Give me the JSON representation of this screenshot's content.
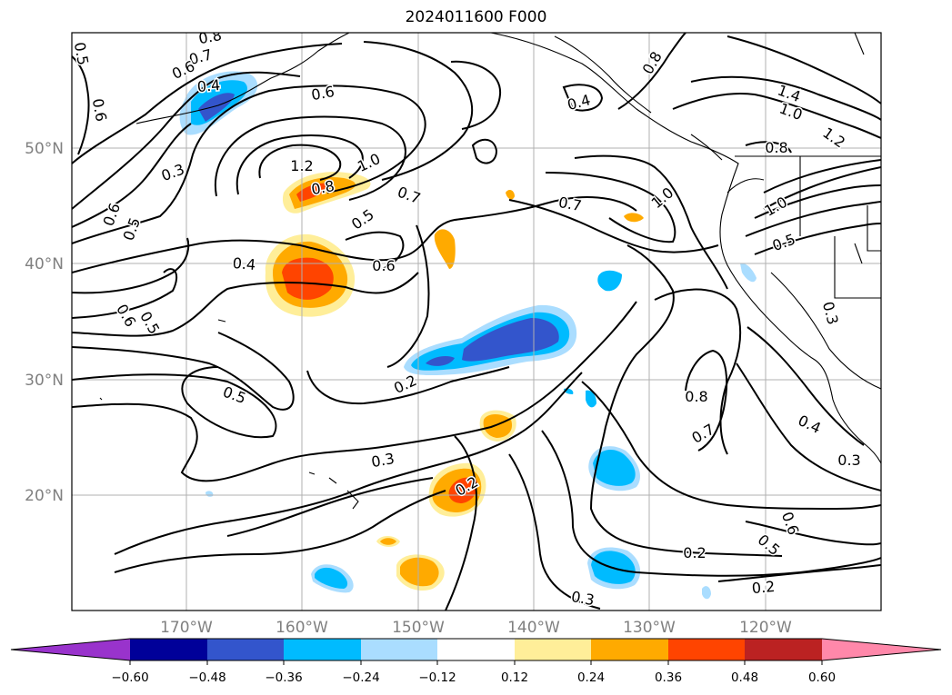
{
  "map": {
    "title": "2024011600 F000",
    "lat_labels": [
      "50°N",
      "40°N",
      "30°N",
      "20°N"
    ],
    "lon_labels": [
      "170°W",
      "160°W",
      "150°W",
      "140°W",
      "130°W",
      "120°W"
    ],
    "contour_labels": [
      {
        "text": "0.8"
      },
      {
        "text": "0.7"
      },
      {
        "text": "0.6"
      },
      {
        "text": "0.4"
      },
      {
        "text": "0.5"
      },
      {
        "text": "0.6"
      },
      {
        "text": "0.3"
      },
      {
        "text": "0.6"
      },
      {
        "text": "0.5"
      },
      {
        "text": "1.2"
      },
      {
        "text": "1.0"
      },
      {
        "text": "0.8"
      },
      {
        "text": "0.7"
      },
      {
        "text": "0.5"
      },
      {
        "text": "0.4"
      },
      {
        "text": "0.6"
      },
      {
        "text": "0.6"
      },
      {
        "text": "0.5"
      },
      {
        "text": "0.6"
      },
      {
        "text": "0.7"
      },
      {
        "text": "0.8"
      },
      {
        "text": "1.4"
      },
      {
        "text": "1.0"
      },
      {
        "text": "1.2"
      },
      {
        "text": "0.8"
      },
      {
        "text": "1.0"
      },
      {
        "text": "1.0"
      },
      {
        "text": "0.5"
      },
      {
        "text": "0.4"
      },
      {
        "text": "0.3"
      },
      {
        "text": "0.5"
      },
      {
        "text": "0.2"
      },
      {
        "text": "0.8"
      },
      {
        "text": "0.7"
      },
      {
        "text": "0.4"
      },
      {
        "text": "0.3"
      },
      {
        "text": "0.3"
      },
      {
        "text": "0.2"
      },
      {
        "text": "0.6"
      },
      {
        "text": "0.5"
      },
      {
        "text": "0.2"
      },
      {
        "text": "0.2"
      },
      {
        "text": "0.3"
      }
    ]
  },
  "colorbar": {
    "colors": [
      "#9933cc",
      "#000099",
      "#3355cc",
      "#00bbff",
      "#aaddff",
      "#ffffff",
      "#ffee99",
      "#ffaa00",
      "#ff4400",
      "#bb2222",
      "#ff88aa"
    ],
    "tick_labels": [
      "−0.60",
      "−0.48",
      "−0.36",
      "−0.24",
      "−0.12",
      "0.12",
      "0.24",
      "0.36",
      "0.48",
      "0.60"
    ]
  }
}
